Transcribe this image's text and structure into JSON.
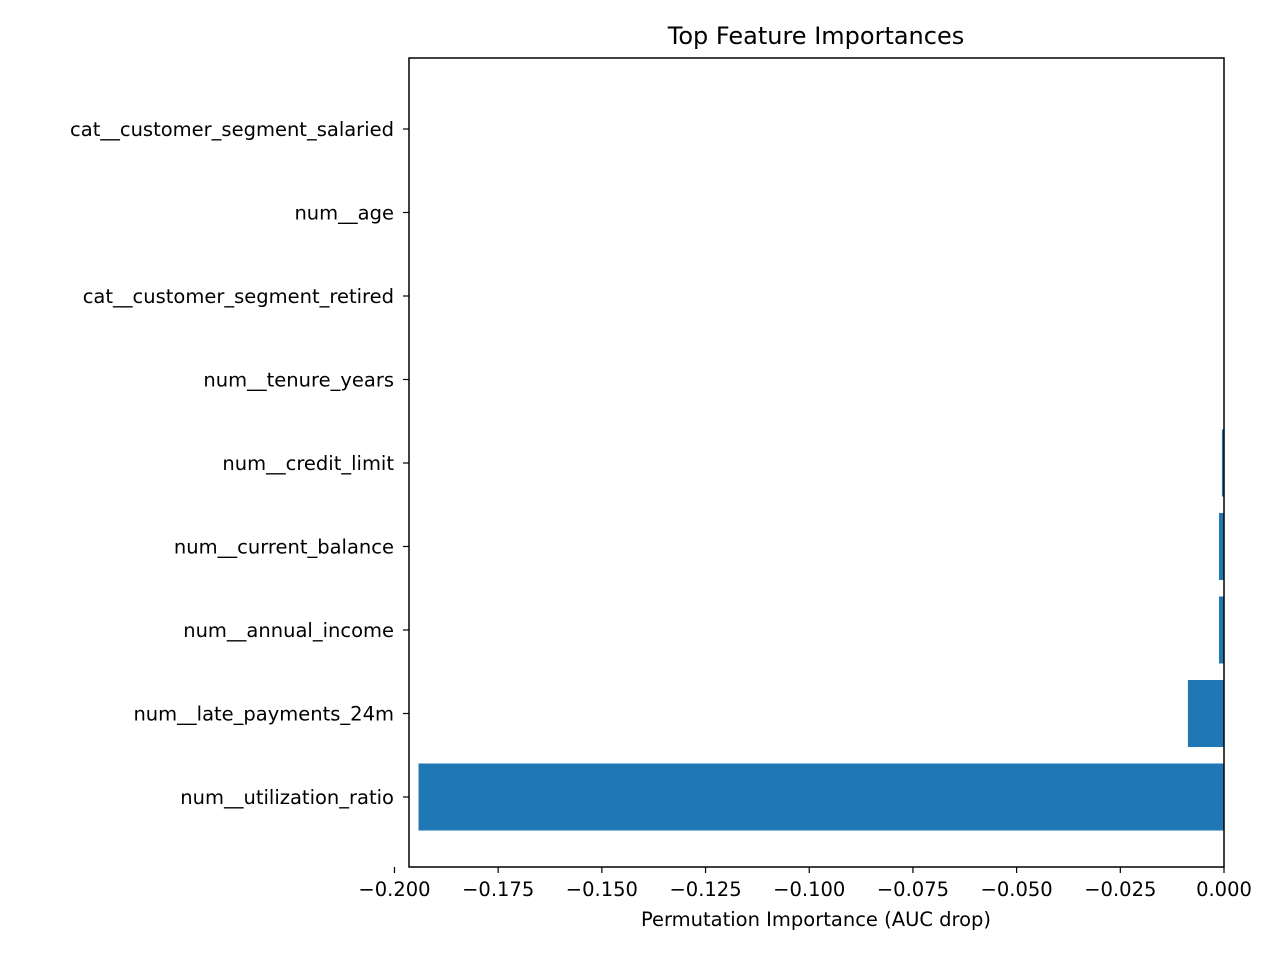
{
  "chart_data": {
    "type": "bar",
    "orientation": "horizontal",
    "title": "Top Feature Importances",
    "xlabel": "Permutation Importance (AUC drop)",
    "ylabel": "",
    "categories": [
      "cat__customer_segment_salaried",
      "num__age",
      "cat__customer_segment_retired",
      "num__tenure_years",
      "num__credit_limit",
      "num__current_balance",
      "num__annual_income",
      "num__late_payments_24m",
      "num__utilization_ratio"
    ],
    "values": [
      0.0,
      0.0,
      0.0,
      0.0,
      -0.0005,
      -0.0012,
      -0.0012,
      -0.0087,
      -0.1942
    ],
    "xlim": [
      -0.1965,
      0.0
    ],
    "xticks": [
      -0.2,
      -0.175,
      -0.15,
      -0.125,
      -0.1,
      -0.075,
      -0.05,
      -0.025,
      0.0
    ],
    "xtick_labels": [
      "−0.200",
      "−0.175",
      "−0.150",
      "−0.125",
      "−0.100",
      "−0.075",
      "−0.050",
      "−0.025",
      "0.000"
    ],
    "bar_color": "#1f77b4",
    "grid": false,
    "legend": "none"
  }
}
